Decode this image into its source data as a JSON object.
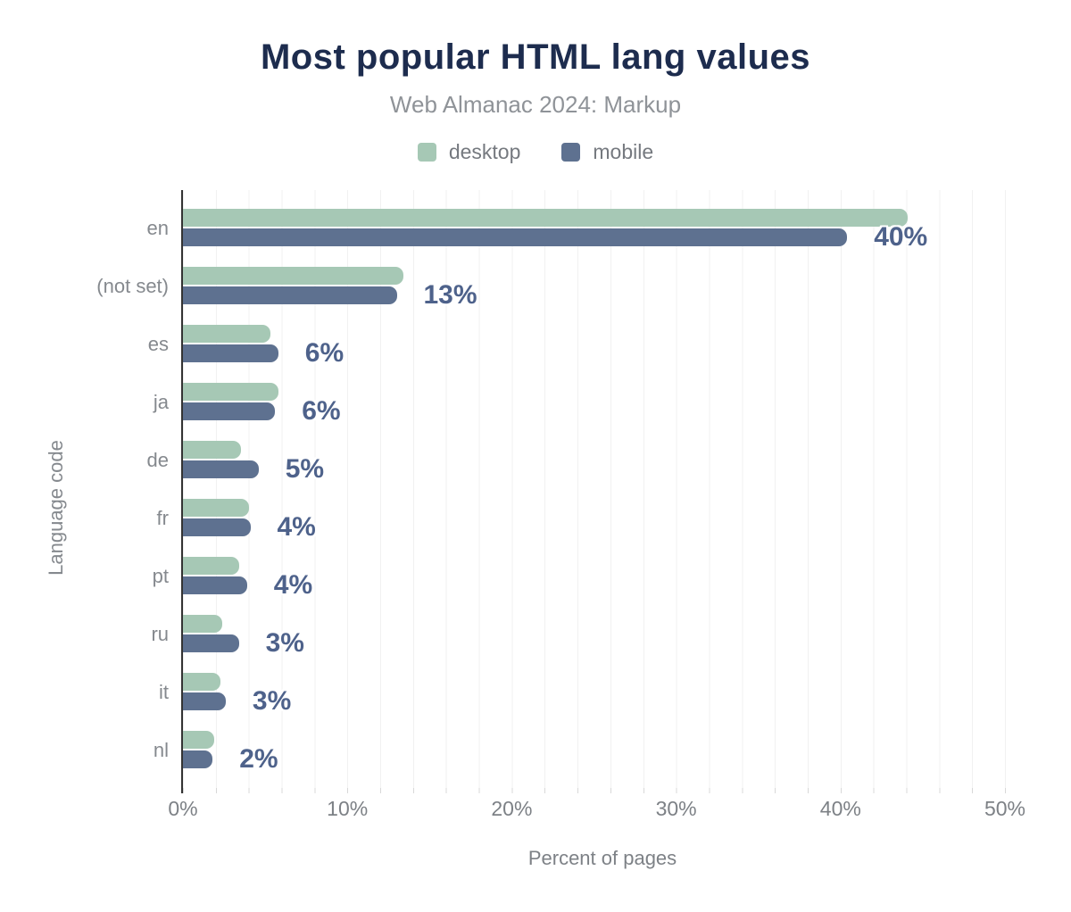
{
  "chart_data": {
    "type": "bar",
    "orientation": "horizontal",
    "title": "Most popular HTML lang values",
    "subtitle": "Web Almanac 2024: Markup",
    "xlabel": "Percent of pages",
    "ylabel": "Language code",
    "categories": [
      "en",
      "(not set)",
      "es",
      "ja",
      "de",
      "fr",
      "pt",
      "ru",
      "it",
      "nl"
    ],
    "series": [
      {
        "name": "desktop",
        "color": "#a6c8b5",
        "values": [
          44.1,
          13.4,
          5.3,
          5.8,
          3.5,
          4.0,
          3.4,
          2.4,
          2.3,
          1.9
        ]
      },
      {
        "name": "mobile",
        "color": "#5e7190",
        "values": [
          40.4,
          13.0,
          5.8,
          5.6,
          4.6,
          4.1,
          3.9,
          3.4,
          2.6,
          1.8
        ]
      }
    ],
    "data_labels": [
      "40%",
      "13%",
      "6%",
      "6%",
      "5%",
      "4%",
      "4%",
      "3%",
      "3%",
      "2%"
    ],
    "data_labels_source": "mobile",
    "x_ticks": [
      "0%",
      "10%",
      "20%",
      "30%",
      "40%",
      "50%"
    ],
    "x_tick_values": [
      0,
      10,
      20,
      30,
      40,
      50
    ],
    "xlim": [
      0,
      51
    ],
    "grid": "vertical minor gridlines every 2%",
    "legend_position": "top center"
  },
  "colors": {
    "title": "#1d2c4e",
    "subtitle": "#8f9398",
    "axis_text": "#7d8186",
    "category_text": "#85898e",
    "data_label": "#4e628b",
    "gridline": "#f1f1f1",
    "axis_line": "#333333",
    "desktop": "#a6c8b5",
    "mobile": "#5e7190"
  }
}
